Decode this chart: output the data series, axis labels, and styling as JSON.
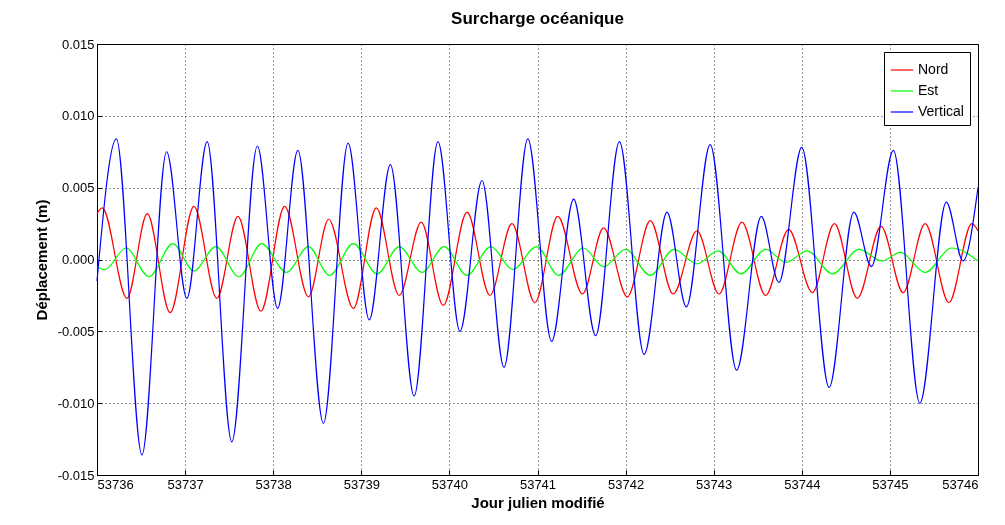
{
  "chart_data": {
    "type": "line",
    "title": "Surcharge océanique",
    "xlabel": "Jour julien modifié",
    "ylabel": "Déplacement (m)",
    "xlim": [
      53736,
      53746
    ],
    "xticks": [
      53736,
      53737,
      53738,
      53739,
      53740,
      53741,
      53742,
      53743,
      53744,
      53745,
      53746
    ],
    "ylim": [
      -0.015,
      0.015
    ],
    "yticks": [
      {
        "value": -0.015,
        "label": "-0.015"
      },
      {
        "value": -0.01,
        "label": "-0.010"
      },
      {
        "value": -0.005,
        "label": "-0.005"
      },
      {
        "value": 0,
        "label": "0.000"
      },
      {
        "value": 0.005,
        "label": "0.005"
      },
      {
        "value": 0.01,
        "label": "0.010"
      },
      {
        "value": 0.015,
        "label": "0.015"
      }
    ],
    "grid": true,
    "legend": "top right",
    "line_style": "solid",
    "marker": "none",
    "series": [
      {
        "name": "Nord",
        "color": "#ff0000",
        "x": [
          53736.0,
          53736.06,
          53736.34,
          53736.57,
          53736.83,
          53737.1,
          53737.36,
          53737.6,
          53737.86,
          53738.13,
          53738.4,
          53738.63,
          53738.91,
          53739.17,
          53739.43,
          53739.68,
          53739.93,
          53740.2,
          53740.46,
          53740.71,
          53740.97,
          53741.23,
          53741.51,
          53741.75,
          53742.02,
          53742.28,
          53742.54,
          53742.81,
          53743.06,
          53743.32,
          53743.59,
          53743.85,
          53744.12,
          53744.37,
          53744.63,
          53744.9,
          53745.15,
          53745.4,
          53745.67,
          53745.93,
          53746.0
        ],
        "values": [
          0.0032,
          0.0036,
          -0.0027,
          0.0032,
          -0.0037,
          0.0037,
          -0.0027,
          0.003,
          -0.0036,
          0.0037,
          -0.0026,
          0.0028,
          -0.0034,
          0.0036,
          -0.0025,
          0.0026,
          -0.0032,
          0.0033,
          -0.0025,
          0.0025,
          -0.003,
          0.003,
          -0.0024,
          0.0022,
          -0.0026,
          0.0027,
          -0.0024,
          0.002,
          -0.0024,
          0.0026,
          -0.0025,
          0.0021,
          -0.0023,
          0.0025,
          -0.0027,
          0.0023,
          -0.0023,
          0.0025,
          -0.003,
          0.0025,
          0.002
        ]
      },
      {
        "name": "Est",
        "color": "#00ff00",
        "x": [
          53736.0,
          53736.09,
          53736.33,
          53736.59,
          53736.86,
          53737.1,
          53737.35,
          53737.61,
          53737.87,
          53738.15,
          53738.4,
          53738.64,
          53738.91,
          53739.18,
          53739.43,
          53739.69,
          53739.94,
          53740.2,
          53740.47,
          53740.72,
          53740.99,
          53741.24,
          53741.52,
          53741.75,
          53742.0,
          53742.28,
          53742.55,
          53742.81,
          53743.05,
          53743.31,
          53743.59,
          53743.82,
          53744.06,
          53744.35,
          53744.65,
          53744.91,
          53745.12,
          53745.4,
          53745.7,
          53746.0
        ],
        "values": [
          -0.0005,
          -0.0007,
          0.0008,
          -0.0012,
          0.0011,
          -0.0008,
          0.0009,
          -0.0012,
          0.0011,
          -0.0009,
          0.0009,
          -0.0011,
          0.0011,
          -0.001,
          0.0009,
          -0.0009,
          0.0009,
          -0.0011,
          0.0009,
          -0.0007,
          0.0009,
          -0.0011,
          0.0008,
          -0.0005,
          0.0007,
          -0.0011,
          0.0007,
          -0.0003,
          0.0006,
          -0.001,
          0.0007,
          -0.0002,
          0.0006,
          -0.001,
          0.0007,
          -0.0001,
          0.0005,
          -0.0009,
          0.0008,
          -0.0001
        ]
      },
      {
        "name": "Vertical",
        "color": "#0000ff",
        "x": [
          53736.0,
          53736.22,
          53736.51,
          53736.79,
          53737.02,
          53737.25,
          53737.53,
          53737.82,
          53738.05,
          53738.28,
          53738.57,
          53738.85,
          53739.09,
          53739.33,
          53739.6,
          53739.87,
          53740.12,
          53740.37,
          53740.62,
          53740.89,
          53741.16,
          53741.41,
          53741.66,
          53741.93,
          53742.21,
          53742.47,
          53742.69,
          53742.96,
          53743.26,
          53743.54,
          53743.74,
          53744.0,
          53744.31,
          53744.59,
          53744.79,
          53745.04,
          53745.34,
          53745.64,
          53745.83,
          53746.0
        ],
        "values": [
          -0.0015,
          0.0084,
          -0.0136,
          0.0075,
          -0.0027,
          0.0082,
          -0.0127,
          0.0079,
          -0.0034,
          0.0076,
          -0.0114,
          0.0081,
          -0.0042,
          0.0066,
          -0.0095,
          0.0082,
          -0.005,
          0.0055,
          -0.0075,
          0.0084,
          -0.0057,
          0.0042,
          -0.0053,
          0.0082,
          -0.0066,
          0.0033,
          -0.0033,
          0.008,
          -0.0077,
          0.003,
          -0.0016,
          0.0078,
          -0.0089,
          0.0033,
          -0.0005,
          0.0076,
          -0.01,
          0.004,
          -0.0001,
          0.005
        ]
      }
    ]
  }
}
